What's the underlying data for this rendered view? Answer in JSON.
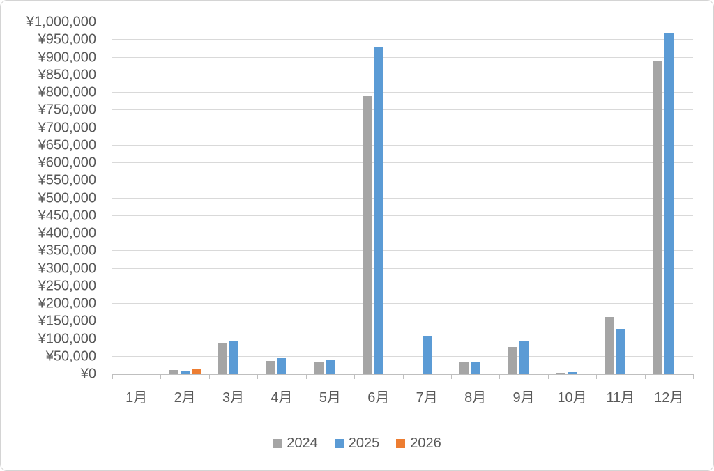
{
  "chart_data": {
    "type": "bar",
    "title": "",
    "categories": [
      "1月",
      "2月",
      "3月",
      "4月",
      "5月",
      "6月",
      "7月",
      "8月",
      "9月",
      "10月",
      "11月",
      "12月"
    ],
    "series": [
      {
        "name": "2024",
        "color": "#a5a5a5",
        "values": [
          0,
          11000,
          89000,
          37000,
          34000,
          790000,
          0,
          35000,
          78000,
          4000,
          162000,
          892000
        ]
      },
      {
        "name": "2025",
        "color": "#5b9bd5",
        "values": [
          0,
          9500,
          94000,
          46000,
          39000,
          930000,
          108000,
          34000,
          93000,
          6000,
          128000,
          968000
        ]
      },
      {
        "name": "2026",
        "color": "#ed7d31",
        "values": [
          0,
          13000,
          null,
          null,
          null,
          null,
          null,
          null,
          null,
          null,
          null,
          null
        ]
      }
    ],
    "y_axis": {
      "min": 0,
      "max": 1000000,
      "step": 50000,
      "prefix": "¥",
      "tick_labels": [
        "¥0",
        "¥50,000",
        "¥100,000",
        "¥150,000",
        "¥200,000",
        "¥250,000",
        "¥300,000",
        "¥350,000",
        "¥400,000",
        "¥450,000",
        "¥500,000",
        "¥550,000",
        "¥600,000",
        "¥650,000",
        "¥700,000",
        "¥750,000",
        "¥800,000",
        "¥850,000",
        "¥900,000",
        "¥950,000",
        "¥1,000,000"
      ]
    },
    "legend": {
      "position": "bottom",
      "entries": [
        "2024",
        "2025",
        "2026"
      ]
    },
    "grid": true
  },
  "colors": {
    "gridline": "#d9d9d9",
    "axis": "#bfbfbf",
    "label_text": "#595959",
    "background": "#ffffff",
    "border": "#d4d4d4"
  }
}
